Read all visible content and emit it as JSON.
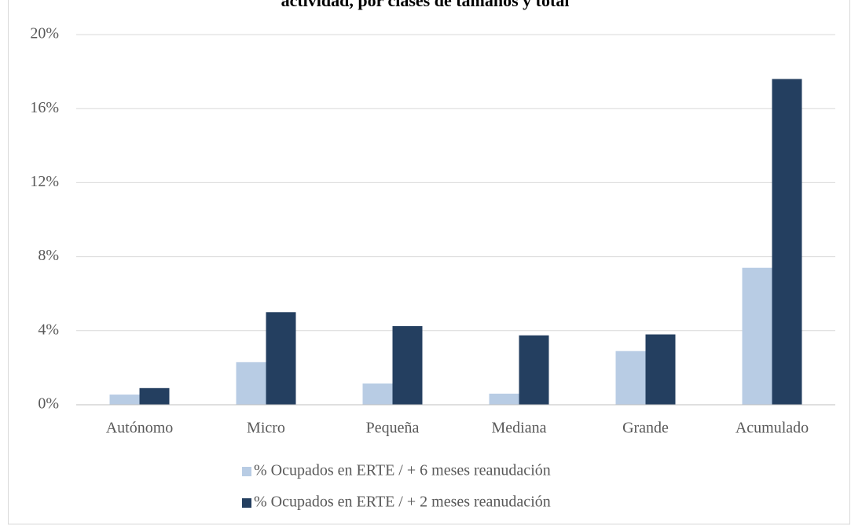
{
  "chart_data": {
    "type": "bar",
    "title": "actividad, por clases de tamaños y total",
    "categories": [
      "Autónomo",
      "Micro",
      "Pequeña",
      "Mediana",
      "Grande",
      "Acumulado"
    ],
    "series": [
      {
        "name": "% Ocupados en ERTE / + 6 meses reanudación",
        "color": "#b8cce4",
        "values": [
          0.55,
          2.3,
          1.15,
          0.6,
          2.9,
          7.4
        ]
      },
      {
        "name": "% Ocupados en ERTE / + 2 meses reanudación",
        "color": "#243f60",
        "values": [
          0.9,
          5.0,
          4.25,
          3.75,
          3.8,
          17.6
        ]
      }
    ],
    "ylim": [
      0,
      20
    ],
    "yticks": [
      {
        "value": 0,
        "label": "0%"
      },
      {
        "value": 4,
        "label": "4%"
      },
      {
        "value": 8,
        "label": "8%"
      },
      {
        "value": 12,
        "label": "12%"
      },
      {
        "value": 16,
        "label": "16%"
      },
      {
        "value": 20,
        "label": "20%"
      }
    ],
    "grid": true,
    "legend": "bottom"
  }
}
